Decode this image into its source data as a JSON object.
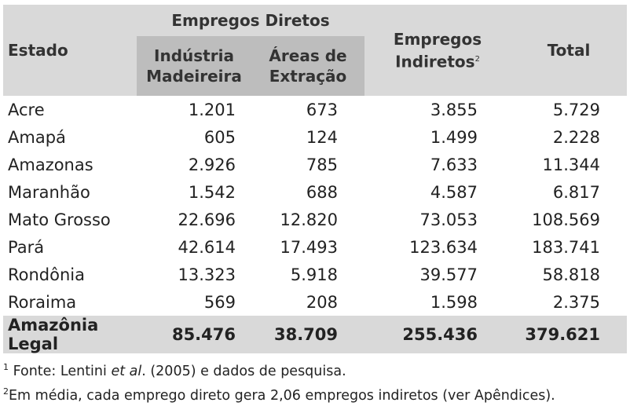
{
  "table": {
    "header": {
      "state": "Estado",
      "direct_group": "Empregos Diretos",
      "sub_col1_line1": "Indústria",
      "sub_col1_line2": "Madeireira",
      "sub_col2_line1": "Áreas de",
      "sub_col2_line2": "Extração",
      "indirect_line1": "Empregos",
      "indirect_line2": "Indiretos",
      "indirect_marker": "2",
      "total": "Total"
    },
    "rows": [
      {
        "state": "Acre",
        "industria": "1.201",
        "areas": "673",
        "indiretos": "3.855",
        "total": "5.729"
      },
      {
        "state": "Amapá",
        "industria": "605",
        "areas": "124",
        "indiretos": "1.499",
        "total": "2.228"
      },
      {
        "state": "Amazonas",
        "industria": "2.926",
        "areas": "785",
        "indiretos": "7.633",
        "total": "11.344"
      },
      {
        "state": "Maranhão",
        "industria": "1.542",
        "areas": "688",
        "indiretos": "4.587",
        "total": "6.817"
      },
      {
        "state": "Mato Grosso",
        "industria": "22.696",
        "areas": "12.820",
        "indiretos": "73.053",
        "total": "108.569"
      },
      {
        "state": "Pará",
        "industria": "42.614",
        "areas": "17.493",
        "indiretos": "123.634",
        "total": "183.741"
      },
      {
        "state": "Rondônia",
        "industria": "13.323",
        "areas": "5.918",
        "indiretos": "39.577",
        "total": "58.818"
      },
      {
        "state": "Roraima",
        "industria": "569",
        "areas": "208",
        "indiretos": "1.598",
        "total": "2.375"
      }
    ],
    "total_row": {
      "state": "Amazônia Legal",
      "industria": "85.476",
      "areas": "38.709",
      "indiretos": "255.436",
      "total": "379.621"
    }
  },
  "notes": {
    "n1_marker": "1",
    "n1_text_a": " Fonte: Lentini ",
    "n1_text_italic": "et al",
    "n1_text_b": ". (2005) e dados de pesquisa.",
    "n2_marker": "2",
    "n2_text": "Em média, cada emprego direto gera 2,06 empregos indiretos (ver Apêndices)."
  }
}
